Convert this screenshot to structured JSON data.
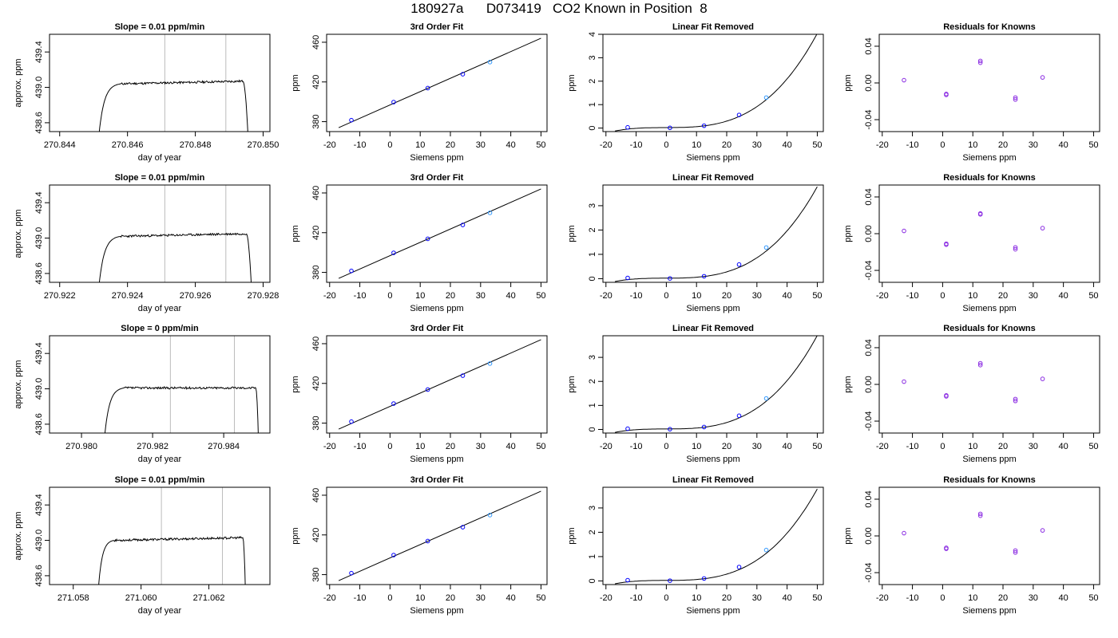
{
  "title": {
    "run": "180927a",
    "tank": "D073419",
    "desc": "CO2 Known in Position  8"
  },
  "colors": {
    "trace": "#000000",
    "vline": "#bbbbbb",
    "point": "#0000ff",
    "point_alt": "#3399ff",
    "resid": "#8a2be2",
    "curve": "#000000"
  },
  "chart_data": [
    {
      "type": "line",
      "panel": "timeseries",
      "title": "Slope =  0.01  ppm/min",
      "xlabel": "day of year",
      "ylabel": "approx. ppm",
      "xlim": [
        270.8437,
        270.8502
      ],
      "ylim": [
        438.5,
        439.6
      ],
      "xticks": [
        270.844,
        270.846,
        270.848,
        270.85
      ],
      "xtick_labels": [
        "270.844",
        "270.846",
        "270.848",
        "270.850"
      ],
      "yticks": [
        438.6,
        439.0,
        439.4
      ],
      "ytick_labels": [
        "438.6",
        "439.0",
        "439.4"
      ],
      "vlines": [
        270.8471,
        270.8489
      ],
      "trace": {
        "start": 270.8451,
        "rise_end": 270.8458,
        "end": 270.8494,
        "fall_end": 270.8496,
        "plateau": 439.04,
        "noise": 0.012,
        "drift": 0.03,
        "seed": 11
      }
    },
    {
      "type": "line",
      "panel": "fit",
      "title": "3rd Order Fit",
      "xlabel": "Siemens ppm",
      "ylabel": "ppm",
      "xlim": [
        -21,
        52
      ],
      "ylim": [
        370,
        468
      ],
      "xticks": [
        -20,
        -10,
        0,
        10,
        20,
        30,
        40,
        50
      ],
      "xtick_labels": [
        "-20",
        "-10",
        "0",
        "10",
        "20",
        "30",
        "40",
        "50"
      ],
      "yticks": [
        380,
        420,
        460
      ],
      "ytick_labels": [
        "380",
        "420",
        "460"
      ],
      "curve": {
        "x": [
          -17,
          50
        ],
        "y": [
          374,
          464
        ]
      },
      "points": [
        {
          "x": -12.8,
          "y": 381.5
        },
        {
          "x": 1.2,
          "y": 399.7
        },
        {
          "x": 12.5,
          "y": 413.8
        },
        {
          "x": 24.1,
          "y": 427.8
        },
        {
          "x": 33.1,
          "y": 440.0,
          "alt": true
        }
      ]
    },
    {
      "type": "line",
      "panel": "linfit",
      "title": "Linear Fit Removed",
      "xlabel": "Siemens ppm",
      "ylabel": "ppm",
      "xlim": [
        -21,
        52
      ],
      "ylim": [
        -0.15,
        4.0
      ],
      "xticks": [
        -20,
        -10,
        0,
        10,
        20,
        30,
        40,
        50
      ],
      "xtick_labels": [
        "-20",
        "-10",
        "0",
        "10",
        "20",
        "30",
        "40",
        "50"
      ],
      "yticks": [
        0,
        1,
        2,
        3,
        4
      ],
      "ytick_labels": [
        "0",
        "1",
        "2",
        "3",
        "4"
      ],
      "curve": {
        "x0": -17,
        "x1": 50,
        "a": 3.1e-05,
        "b": 4.7e-05,
        "c": 0.0005,
        "d": 0.0
      },
      "points": [
        {
          "x": -12.8,
          "y": 0.03
        },
        {
          "x": 1.2,
          "y": 0.01
        },
        {
          "x": 12.5,
          "y": 0.1
        },
        {
          "x": 24.1,
          "y": 0.56
        },
        {
          "x": 33.1,
          "y": 1.3,
          "alt": true
        }
      ]
    },
    {
      "type": "scatter",
      "panel": "resid",
      "title": "Residuals for Knowns",
      "xlabel": "Siemens ppm",
      "ylabel": "ppm",
      "xlim": [
        -21,
        52
      ],
      "ylim": [
        -0.053,
        0.053
      ],
      "xticks": [
        -20,
        -10,
        0,
        10,
        20,
        30,
        40,
        50
      ],
      "xtick_labels": [
        "-20",
        "-10",
        "0",
        "10",
        "20",
        "30",
        "40",
        "50"
      ],
      "yticks": [
        -0.04,
        0.0,
        0.04
      ],
      "ytick_labels": [
        "-0.04",
        "0.00",
        "0.04"
      ],
      "points": [
        {
          "x": -12.8,
          "y": 0.003
        },
        {
          "x": 1.2,
          "y": -0.012
        },
        {
          "x": 1.2,
          "y": -0.013
        },
        {
          "x": 12.5,
          "y": 0.022
        },
        {
          "x": 12.5,
          "y": 0.024
        },
        {
          "x": 24.1,
          "y": -0.016
        },
        {
          "x": 24.1,
          "y": -0.018
        },
        {
          "x": 33.1,
          "y": 0.006
        }
      ]
    },
    {
      "type": "line",
      "panel": "timeseries",
      "title": "Slope =  0.01  ppm/min",
      "xlabel": "day of year",
      "ylabel": "approx. ppm",
      "xlim": [
        270.9217,
        270.9282
      ],
      "ylim": [
        438.5,
        439.6
      ],
      "xticks": [
        270.922,
        270.924,
        270.926,
        270.928
      ],
      "xtick_labels": [
        "270.922",
        "270.924",
        "270.926",
        "270.928"
      ],
      "yticks": [
        438.6,
        439.0,
        439.4
      ],
      "ytick_labels": [
        "438.6",
        "439.0",
        "439.4"
      ],
      "vlines": [
        270.9251,
        270.9269
      ],
      "trace": {
        "start": 270.9231,
        "rise_end": 270.9238,
        "end": 270.9275,
        "fall_end": 270.9277,
        "plateau": 439.02,
        "noise": 0.012,
        "drift": 0.03,
        "seed": 23
      }
    },
    {
      "type": "line",
      "panel": "fit",
      "title": "3rd Order Fit",
      "xlabel": "Siemens ppm",
      "ylabel": "ppm",
      "xlim": [
        -21,
        52
      ],
      "ylim": [
        370,
        468
      ],
      "xticks": [
        -20,
        -10,
        0,
        10,
        20,
        30,
        40,
        50
      ],
      "xtick_labels": [
        "-20",
        "-10",
        "0",
        "10",
        "20",
        "30",
        "40",
        "50"
      ],
      "yticks": [
        380,
        420,
        460
      ],
      "ytick_labels": [
        "380",
        "420",
        "460"
      ],
      "curve": {
        "x": [
          -17,
          50
        ],
        "y": [
          374,
          464
        ]
      },
      "points": [
        {
          "x": -12.8,
          "y": 381.5
        },
        {
          "x": 1.2,
          "y": 399.7
        },
        {
          "x": 12.5,
          "y": 413.8
        },
        {
          "x": 24.1,
          "y": 427.8
        },
        {
          "x": 33.1,
          "y": 440.0,
          "alt": true
        }
      ]
    },
    {
      "type": "line",
      "panel": "linfit",
      "title": "Linear Fit Removed",
      "xlabel": "Siemens ppm",
      "ylabel": "ppm",
      "xlim": [
        -21,
        52
      ],
      "ylim": [
        -0.15,
        3.85
      ],
      "xticks": [
        -20,
        -10,
        0,
        10,
        20,
        30,
        40,
        50
      ],
      "xtick_labels": [
        "-20",
        "-10",
        "0",
        "10",
        "20",
        "30",
        "40",
        "50"
      ],
      "yticks": [
        0,
        1,
        2,
        3
      ],
      "ytick_labels": [
        "0",
        "1",
        "2",
        "3"
      ],
      "curve": {
        "x0": -17,
        "x1": 50,
        "a": 2.9e-05,
        "b": 4.5e-05,
        "c": 0.0005,
        "d": 0.0
      },
      "points": [
        {
          "x": -12.8,
          "y": 0.03
        },
        {
          "x": 1.2,
          "y": 0.01
        },
        {
          "x": 12.5,
          "y": 0.1
        },
        {
          "x": 24.1,
          "y": 0.58
        },
        {
          "x": 33.1,
          "y": 1.28,
          "alt": true
        }
      ]
    },
    {
      "type": "scatter",
      "panel": "resid",
      "title": "Residuals for Knowns",
      "xlabel": "Siemens ppm",
      "ylabel": "ppm",
      "xlim": [
        -21,
        52
      ],
      "ylim": [
        -0.053,
        0.053
      ],
      "xticks": [
        -20,
        -10,
        0,
        10,
        20,
        30,
        40,
        50
      ],
      "xtick_labels": [
        "-20",
        "-10",
        "0",
        "10",
        "20",
        "30",
        "40",
        "50"
      ],
      "yticks": [
        -0.04,
        0.0,
        0.04
      ],
      "ytick_labels": [
        "-0.04",
        "0.00",
        "0.04"
      ],
      "points": [
        {
          "x": -12.8,
          "y": 0.003
        },
        {
          "x": 1.2,
          "y": -0.011
        },
        {
          "x": 1.2,
          "y": -0.012
        },
        {
          "x": 12.5,
          "y": 0.021
        },
        {
          "x": 12.5,
          "y": 0.022
        },
        {
          "x": 24.1,
          "y": -0.015
        },
        {
          "x": 24.1,
          "y": -0.017
        },
        {
          "x": 33.1,
          "y": 0.006
        }
      ]
    },
    {
      "type": "line",
      "panel": "timeseries",
      "title": "Slope =  0  ppm/min",
      "xlabel": "day of year",
      "ylabel": "approx. ppm",
      "xlim": [
        270.9791,
        270.9853
      ],
      "ylim": [
        438.5,
        439.6
      ],
      "xticks": [
        270.98,
        270.982,
        270.984
      ],
      "xtick_labels": [
        "270.980",
        "270.982",
        "270.984"
      ],
      "yticks": [
        438.6,
        439.0,
        439.4
      ],
      "ytick_labels": [
        "438.6",
        "439.0",
        "439.4"
      ],
      "vlines": [
        270.9825,
        270.9843
      ],
      "trace": {
        "start": 270.9806,
        "rise_end": 270.9812,
        "end": 270.9849,
        "fall_end": 270.985,
        "plateau": 439.01,
        "noise": 0.012,
        "drift": 0.0,
        "seed": 37
      }
    },
    {
      "type": "line",
      "panel": "fit",
      "title": "3rd Order Fit",
      "xlabel": "Siemens ppm",
      "ylabel": "ppm",
      "xlim": [
        -21,
        52
      ],
      "ylim": [
        370,
        468
      ],
      "xticks": [
        -20,
        -10,
        0,
        10,
        20,
        30,
        40,
        50
      ],
      "xtick_labels": [
        "-20",
        "-10",
        "0",
        "10",
        "20",
        "30",
        "40",
        "50"
      ],
      "yticks": [
        380,
        420,
        460
      ],
      "ytick_labels": [
        "380",
        "420",
        "460"
      ],
      "curve": {
        "x": [
          -17,
          50
        ],
        "y": [
          374,
          464
        ]
      },
      "points": [
        {
          "x": -12.8,
          "y": 381.5
        },
        {
          "x": 1.2,
          "y": 399.7
        },
        {
          "x": 12.5,
          "y": 413.8
        },
        {
          "x": 24.1,
          "y": 427.8
        },
        {
          "x": 33.1,
          "y": 440.0,
          "alt": true
        }
      ]
    },
    {
      "type": "line",
      "panel": "linfit",
      "title": "Linear Fit Removed",
      "xlabel": "Siemens ppm",
      "ylabel": "ppm",
      "xlim": [
        -21,
        52
      ],
      "ylim": [
        -0.15,
        3.9
      ],
      "xticks": [
        -20,
        -10,
        0,
        10,
        20,
        30,
        40,
        50
      ],
      "xtick_labels": [
        "-20",
        "-10",
        "0",
        "10",
        "20",
        "30",
        "40",
        "50"
      ],
      "yticks": [
        0,
        1,
        2,
        3
      ],
      "ytick_labels": [
        "0",
        "1",
        "2",
        "3"
      ],
      "curve": {
        "x0": -17,
        "x1": 50,
        "a": 3e-05,
        "b": 4.6e-05,
        "c": 0.0005,
        "d": 0.0
      },
      "points": [
        {
          "x": -12.8,
          "y": 0.03
        },
        {
          "x": 1.2,
          "y": 0.01
        },
        {
          "x": 12.5,
          "y": 0.1
        },
        {
          "x": 24.1,
          "y": 0.57
        },
        {
          "x": 33.1,
          "y": 1.29,
          "alt": true
        }
      ]
    },
    {
      "type": "scatter",
      "panel": "resid",
      "title": "Residuals for Knowns",
      "xlabel": "Siemens ppm",
      "ylabel": "ppm",
      "xlim": [
        -21,
        52
      ],
      "ylim": [
        -0.053,
        0.053
      ],
      "xticks": [
        -20,
        -10,
        0,
        10,
        20,
        30,
        40,
        50
      ],
      "xtick_labels": [
        "-20",
        "-10",
        "0",
        "10",
        "20",
        "30",
        "40",
        "50"
      ],
      "yticks": [
        -0.04,
        0.0,
        0.04
      ],
      "ytick_labels": [
        "-0.04",
        "0.00",
        "0.04"
      ],
      "points": [
        {
          "x": -12.8,
          "y": 0.003
        },
        {
          "x": 1.2,
          "y": -0.012
        },
        {
          "x": 1.2,
          "y": -0.013
        },
        {
          "x": 12.5,
          "y": 0.021
        },
        {
          "x": 12.5,
          "y": 0.023
        },
        {
          "x": 24.1,
          "y": -0.016
        },
        {
          "x": 24.1,
          "y": -0.018
        },
        {
          "x": 33.1,
          "y": 0.006
        }
      ]
    },
    {
      "type": "line",
      "panel": "timeseries",
      "title": "Slope =  0.01  ppm/min",
      "xlabel": "day of year",
      "ylabel": "approx. ppm",
      "xlim": [
        271.0573,
        271.0638
      ],
      "ylim": [
        438.5,
        439.6
      ],
      "xticks": [
        271.058,
        271.06,
        271.062
      ],
      "xtick_labels": [
        "271.058",
        "271.060",
        "271.062"
      ],
      "yticks": [
        438.6,
        439.0,
        439.4
      ],
      "ytick_labels": [
        "438.6",
        "439.0",
        "439.4"
      ],
      "vlines": [
        271.0606,
        271.0624
      ],
      "trace": {
        "start": 271.0587,
        "rise_end": 271.0592,
        "end": 271.063,
        "fall_end": 271.0631,
        "plateau": 439.0,
        "noise": 0.012,
        "drift": 0.03,
        "seed": 53
      }
    },
    {
      "type": "line",
      "panel": "fit",
      "title": "3rd Order Fit",
      "xlabel": "Siemens ppm",
      "ylabel": "ppm",
      "xlim": [
        -21,
        52
      ],
      "ylim": [
        370,
        468
      ],
      "xticks": [
        -20,
        -10,
        0,
        10,
        20,
        30,
        40,
        50
      ],
      "xtick_labels": [
        "-20",
        "-10",
        "0",
        "10",
        "20",
        "30",
        "40",
        "50"
      ],
      "yticks": [
        380,
        420,
        460
      ],
      "ytick_labels": [
        "380",
        "420",
        "460"
      ],
      "curve": {
        "x": [
          -17,
          50
        ],
        "y": [
          374,
          464
        ]
      },
      "points": [
        {
          "x": -12.8,
          "y": 381.5
        },
        {
          "x": 1.2,
          "y": 399.7
        },
        {
          "x": 12.5,
          "y": 413.8
        },
        {
          "x": 24.1,
          "y": 427.8
        },
        {
          "x": 33.1,
          "y": 440.0,
          "alt": true
        }
      ]
    },
    {
      "type": "line",
      "panel": "linfit",
      "title": "Linear Fit Removed",
      "xlabel": "Siemens ppm",
      "ylabel": "ppm",
      "xlim": [
        -21,
        52
      ],
      "ylim": [
        -0.15,
        3.85
      ],
      "xticks": [
        -20,
        -10,
        0,
        10,
        20,
        30,
        40,
        50
      ],
      "xtick_labels": [
        "-20",
        "-10",
        "0",
        "10",
        "20",
        "30",
        "40",
        "50"
      ],
      "yticks": [
        0,
        1,
        2,
        3
      ],
      "ytick_labels": [
        "0",
        "1",
        "2",
        "3"
      ],
      "curve": {
        "x0": -17,
        "x1": 50,
        "a": 2.9e-05,
        "b": 4.4e-05,
        "c": 0.0005,
        "d": 0.0
      },
      "points": [
        {
          "x": -12.8,
          "y": 0.03
        },
        {
          "x": 1.2,
          "y": 0.01
        },
        {
          "x": 12.5,
          "y": 0.1
        },
        {
          "x": 24.1,
          "y": 0.57
        },
        {
          "x": 33.1,
          "y": 1.27,
          "alt": true
        }
      ]
    },
    {
      "type": "scatter",
      "panel": "resid",
      "title": "Residuals for Knowns",
      "xlabel": "Siemens ppm",
      "ylabel": "ppm",
      "xlim": [
        -21,
        52
      ],
      "ylim": [
        -0.053,
        0.053
      ],
      "xticks": [
        -20,
        -10,
        0,
        10,
        20,
        30,
        40,
        50
      ],
      "xtick_labels": [
        "-20",
        "-10",
        "0",
        "10",
        "20",
        "30",
        "40",
        "50"
      ],
      "yticks": [
        -0.04,
        0.0,
        0.04
      ],
      "ytick_labels": [
        "-0.04",
        "0.00",
        "0.04"
      ],
      "points": [
        {
          "x": -12.8,
          "y": 0.003
        },
        {
          "x": 1.2,
          "y": -0.013
        },
        {
          "x": 1.2,
          "y": -0.014
        },
        {
          "x": 12.5,
          "y": 0.022
        },
        {
          "x": 12.5,
          "y": 0.024
        },
        {
          "x": 24.1,
          "y": -0.016
        },
        {
          "x": 24.1,
          "y": -0.018
        },
        {
          "x": 33.1,
          "y": 0.006
        }
      ]
    }
  ]
}
